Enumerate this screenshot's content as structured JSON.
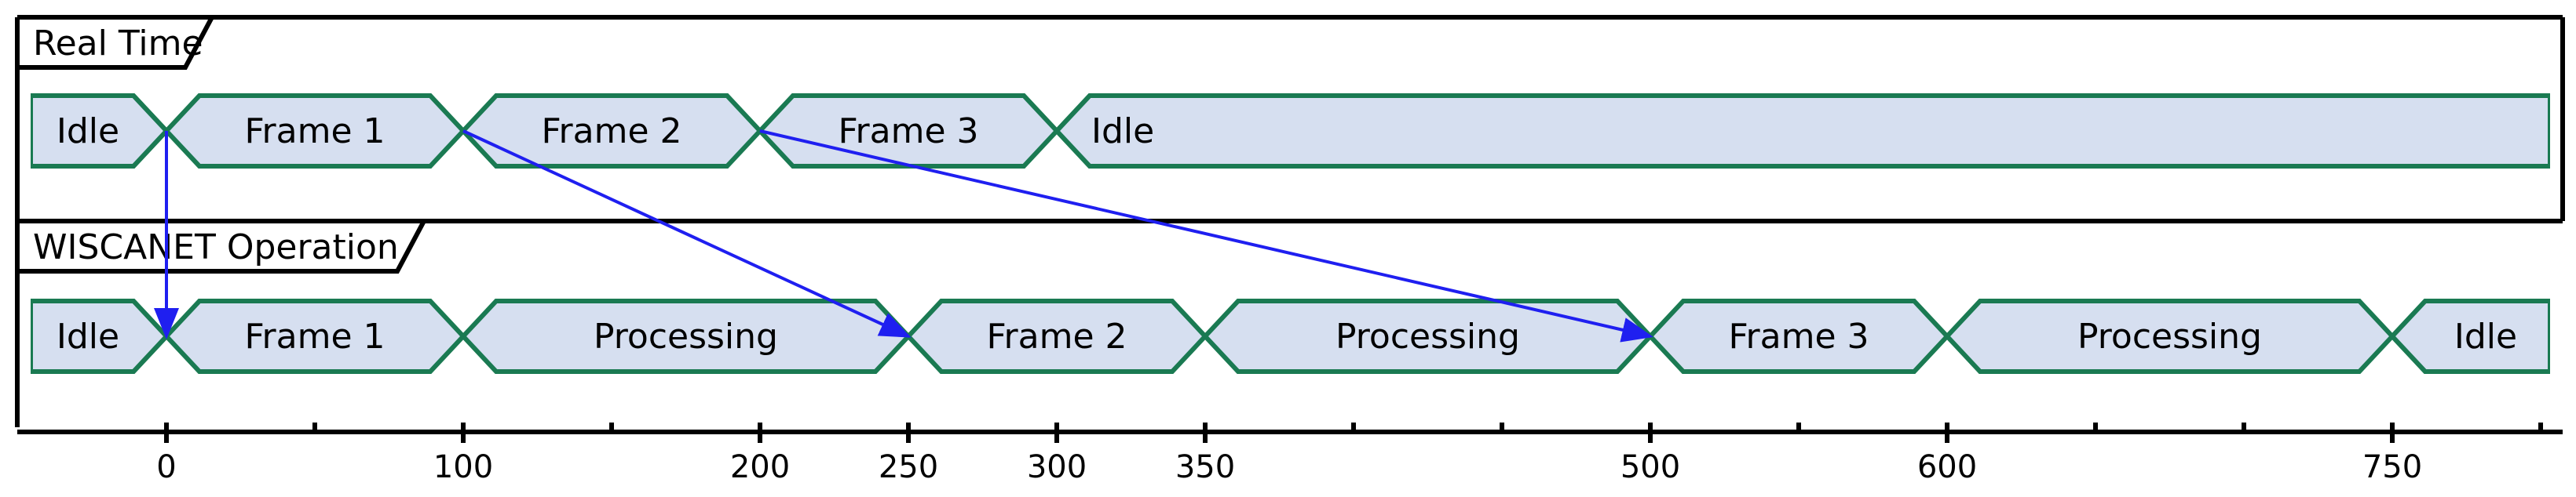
{
  "timing_diagram": {
    "axis": {
      "min": 0,
      "max": 800,
      "major_ticks": [
        0,
        100,
        200,
        250,
        300,
        350,
        500,
        600,
        750
      ],
      "minor_ticks": [
        50,
        150,
        400,
        450,
        550,
        650,
        700,
        800
      ]
    },
    "lanes": [
      {
        "id": "real-time",
        "title": "Real Time",
        "segments": [
          {
            "label": "Idle",
            "start": -45,
            "end": 0
          },
          {
            "label": "Frame 1",
            "start": 0,
            "end": 100
          },
          {
            "label": "Frame 2",
            "start": 100,
            "end": 200
          },
          {
            "label": "Frame 3",
            "start": 200,
            "end": 300
          },
          {
            "label": "Idle",
            "start": 300,
            "end": 800,
            "open_end": true,
            "label_align": "start"
          }
        ]
      },
      {
        "id": "wiscanet-operation",
        "title": "WISCANET Operation",
        "segments": [
          {
            "label": "Idle",
            "start": -45,
            "end": 0
          },
          {
            "label": "Frame 1",
            "start": 0,
            "end": 100
          },
          {
            "label": "Processing",
            "start": 100,
            "end": 250
          },
          {
            "label": "Frame 2",
            "start": 250,
            "end": 350
          },
          {
            "label": "Processing",
            "start": 350,
            "end": 500
          },
          {
            "label": "Frame 3",
            "start": 500,
            "end": 600
          },
          {
            "label": "Processing",
            "start": 600,
            "end": 750
          },
          {
            "label": "Idle",
            "start": 750,
            "end": 800,
            "open_end": true
          }
        ]
      }
    ],
    "arrows": [
      {
        "from_lane": 0,
        "from_t": 0,
        "to_lane": 1,
        "to_t": 0
      },
      {
        "from_lane": 0,
        "from_t": 100,
        "to_lane": 1,
        "to_t": 250
      },
      {
        "from_lane": 0,
        "from_t": 200,
        "to_lane": 1,
        "to_t": 500
      }
    ],
    "colors": {
      "segment_fill": "#d6dff0",
      "segment_stroke": "#1a7a52",
      "arrow": "#1f1ff0",
      "frame": "#000000"
    }
  }
}
